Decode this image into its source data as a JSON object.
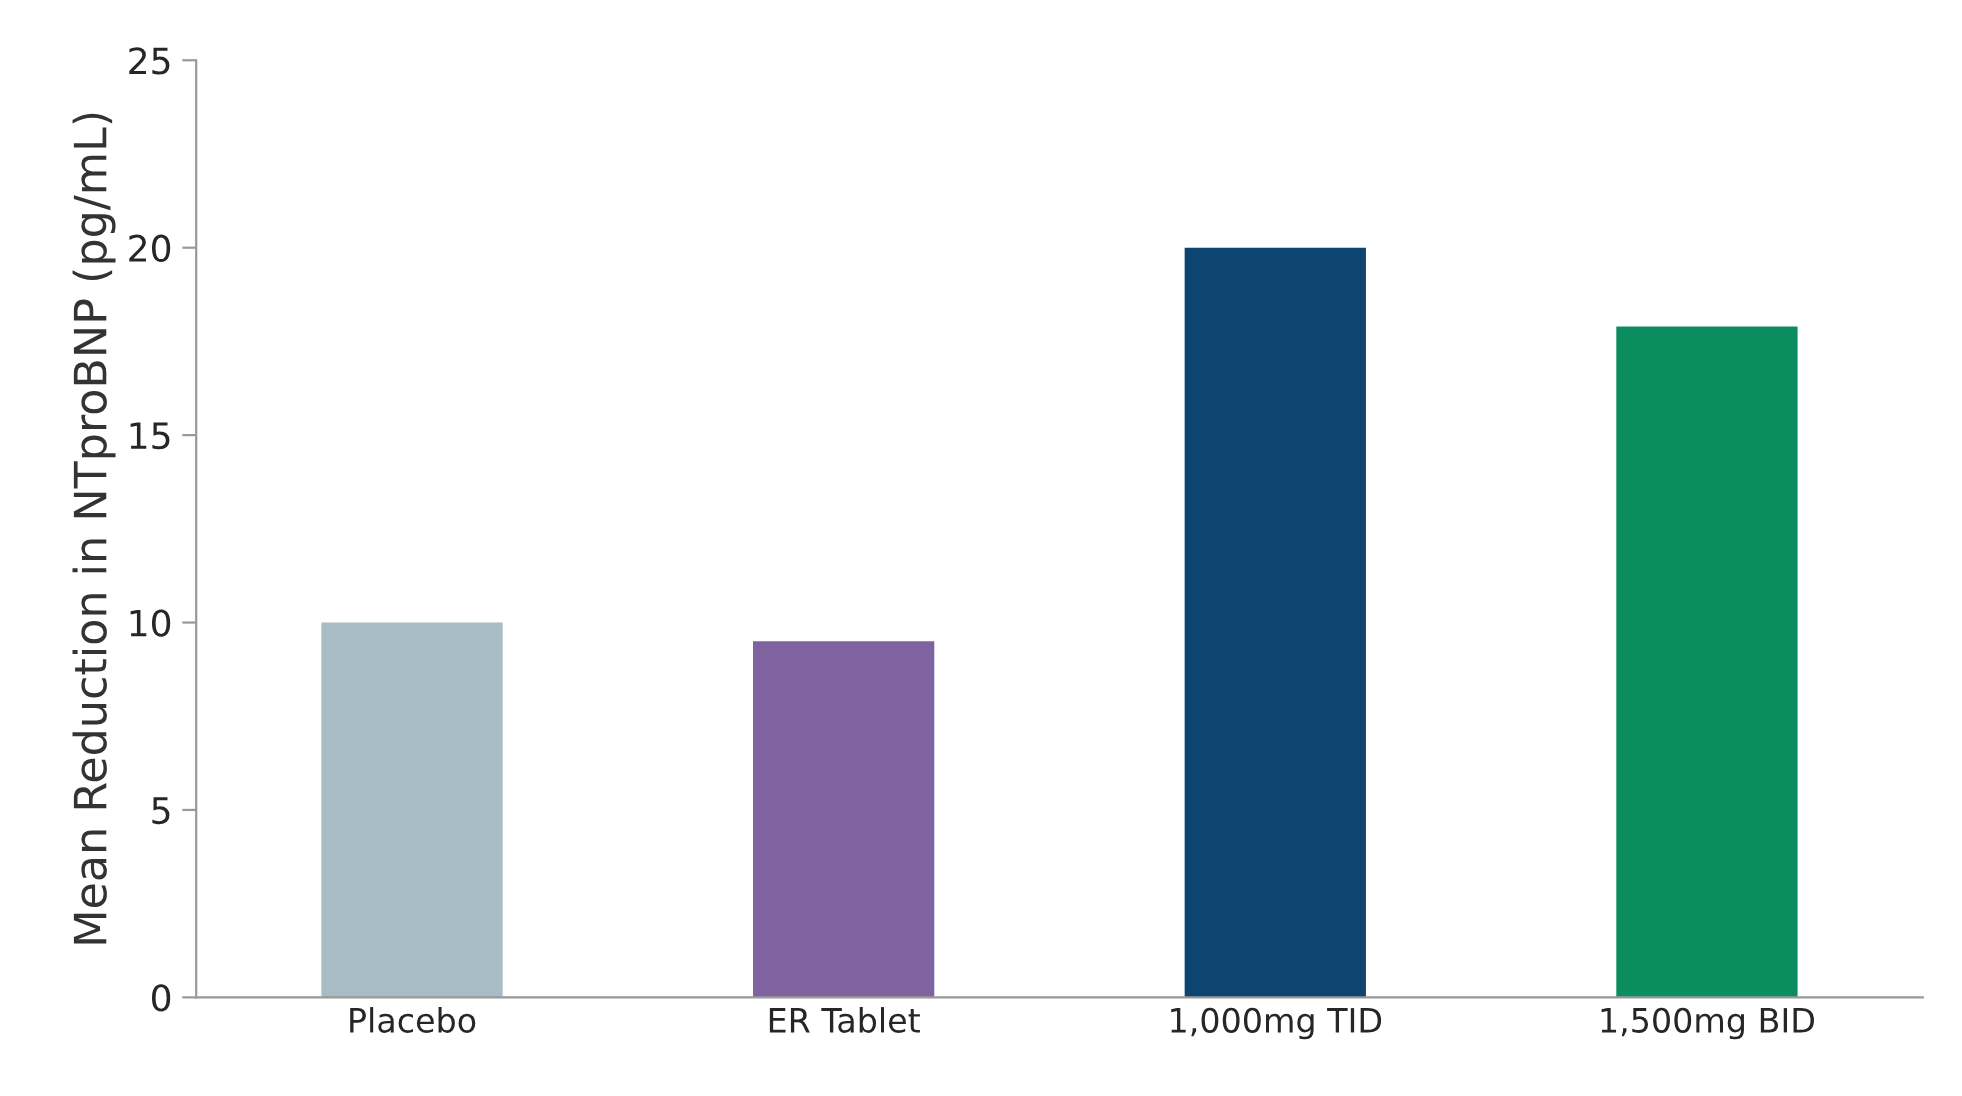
{
  "chart_data": {
    "type": "bar",
    "ylabel": "Mean Reduction in NTproBNP (pg/mL)",
    "categories": [
      "Placebo",
      "ER Tablet",
      "1,000mg TID",
      "1,500mg BID"
    ],
    "values": [
      10.0,
      9.5,
      20.0,
      17.9
    ],
    "colors": [
      "#a7bcc4",
      "#7f63a1",
      "#0e4470",
      "#0b8d5f"
    ],
    "ylim": [
      0,
      25
    ],
    "yticks": [
      0,
      5,
      10,
      15,
      20,
      25
    ],
    "grid": false,
    "legend": false
  }
}
